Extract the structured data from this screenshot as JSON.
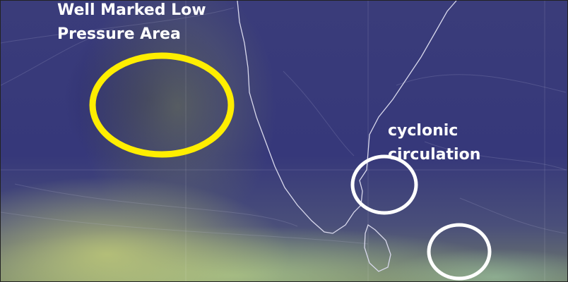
{
  "annotations": {
    "low_pressure_line1": "Well Marked Low",
    "low_pressure_line2": "Pressure Area",
    "cyclonic_line1": "cyclonic",
    "cyclonic_line2": "circulation"
  },
  "colors": {
    "low_pressure_marker": "#ffee00",
    "cyclonic_marker": "#ffffff",
    "background": "#36387a"
  }
}
